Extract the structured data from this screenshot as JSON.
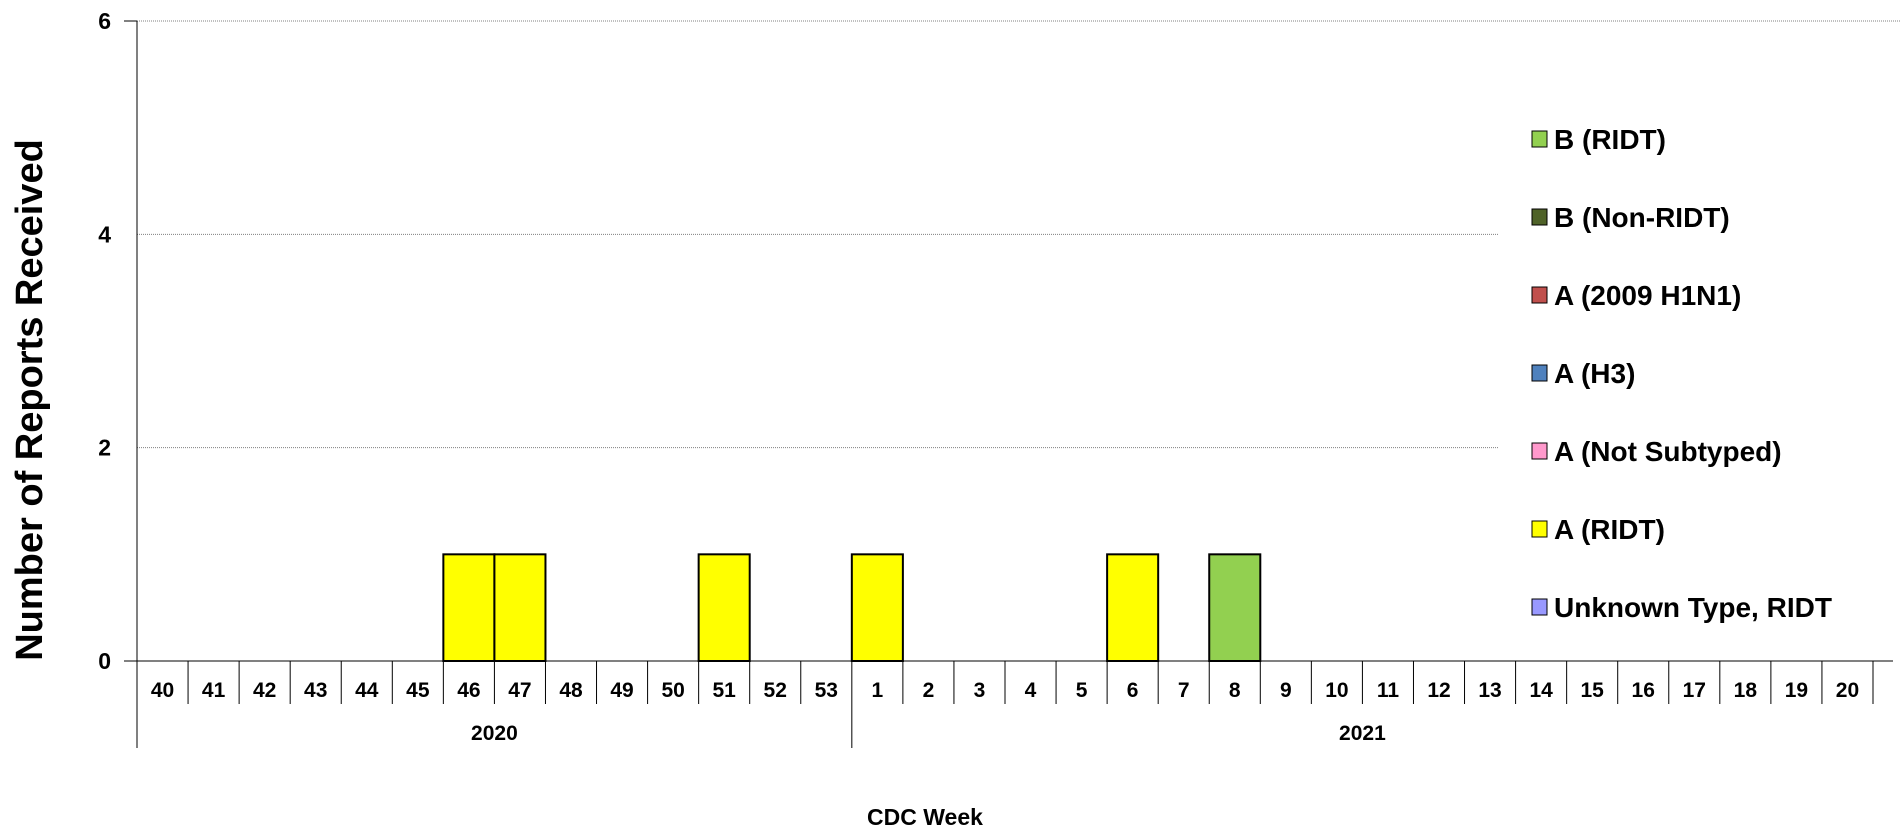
{
  "chart_data": {
    "type": "bar",
    "stacked": true,
    "ylabel": "Number of Reports Received",
    "xlabel": "CDC Week",
    "ylim": [
      0,
      6
    ],
    "yticks": [
      0,
      2,
      4,
      6
    ],
    "grid": "horizontal dotted",
    "legend_position": "right",
    "categories": [
      "40",
      "41",
      "42",
      "43",
      "44",
      "45",
      "46",
      "47",
      "48",
      "49",
      "50",
      "51",
      "52",
      "53",
      "1",
      "2",
      "3",
      "4",
      "5",
      "6",
      "7",
      "8",
      "9",
      "10",
      "11",
      "12",
      "13",
      "14",
      "15",
      "16",
      "17",
      "18",
      "19",
      "20"
    ],
    "year_groups": [
      {
        "label": "2020",
        "first_week": "40",
        "last_week": "53"
      },
      {
        "label": "2021",
        "first_week": "1",
        "last_week": "20"
      }
    ],
    "series": [
      {
        "name": "B (RIDT)",
        "color": "#92D050",
        "values": [
          0,
          0,
          0,
          0,
          0,
          0,
          0,
          0,
          0,
          0,
          0,
          0,
          0,
          0,
          0,
          0,
          0,
          0,
          0,
          0,
          0,
          1,
          0,
          0,
          0,
          0,
          0,
          0,
          0,
          0,
          0,
          0,
          0,
          0
        ]
      },
      {
        "name": "B (Non-RIDT)",
        "color": "#4F6228",
        "values": [
          0,
          0,
          0,
          0,
          0,
          0,
          0,
          0,
          0,
          0,
          0,
          0,
          0,
          0,
          0,
          0,
          0,
          0,
          0,
          0,
          0,
          0,
          0,
          0,
          0,
          0,
          0,
          0,
          0,
          0,
          0,
          0,
          0,
          0
        ]
      },
      {
        "name": "A (2009 H1N1)",
        "color": "#C0504D",
        "values": [
          0,
          0,
          0,
          0,
          0,
          0,
          0,
          0,
          0,
          0,
          0,
          0,
          0,
          0,
          0,
          0,
          0,
          0,
          0,
          0,
          0,
          0,
          0,
          0,
          0,
          0,
          0,
          0,
          0,
          0,
          0,
          0,
          0,
          0
        ]
      },
      {
        "name": "A (H3)",
        "color": "#4F81BD",
        "values": [
          0,
          0,
          0,
          0,
          0,
          0,
          0,
          0,
          0,
          0,
          0,
          0,
          0,
          0,
          0,
          0,
          0,
          0,
          0,
          0,
          0,
          0,
          0,
          0,
          0,
          0,
          0,
          0,
          0,
          0,
          0,
          0,
          0,
          0
        ]
      },
      {
        "name": "A (Not Subtyped)",
        "color": "#FF99CC",
        "values": [
          0,
          0,
          0,
          0,
          0,
          0,
          0,
          0,
          0,
          0,
          0,
          0,
          0,
          0,
          0,
          0,
          0,
          0,
          0,
          0,
          0,
          0,
          0,
          0,
          0,
          0,
          0,
          0,
          0,
          0,
          0,
          0,
          0,
          0
        ]
      },
      {
        "name": "A (RIDT)",
        "color": "#FFFF00",
        "values": [
          0,
          0,
          0,
          0,
          0,
          0,
          1,
          1,
          0,
          0,
          0,
          1,
          0,
          0,
          1,
          0,
          0,
          0,
          0,
          1,
          0,
          0,
          0,
          0,
          0,
          0,
          0,
          0,
          0,
          0,
          0,
          0,
          0,
          0
        ]
      },
      {
        "name": "Unknown Type, RIDT",
        "color": "#9999FF",
        "values": [
          0,
          0,
          0,
          0,
          0,
          0,
          0,
          0,
          0,
          0,
          0,
          0,
          0,
          0,
          0,
          0,
          0,
          0,
          0,
          0,
          0,
          0,
          0,
          0,
          0,
          0,
          0,
          0,
          0,
          0,
          0,
          0,
          0,
          0
        ]
      }
    ]
  }
}
